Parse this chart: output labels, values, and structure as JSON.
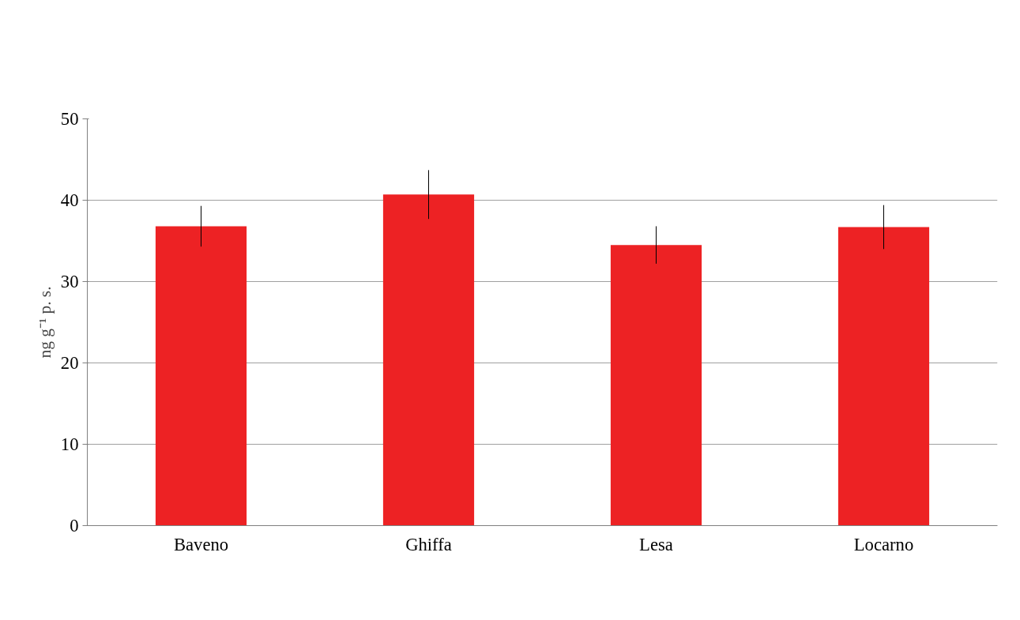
{
  "chart_data": {
    "type": "bar",
    "ylabel": "ng g⁻¹ p. s.",
    "categories": [
      "Baveno",
      "Ghiffa",
      "Lesa",
      "Locarno"
    ],
    "values": [
      36.8,
      40.7,
      34.5,
      36.7
    ],
    "errors": [
      2.5,
      3.0,
      2.3,
      2.7
    ],
    "color": "#ed2224",
    "ylim": [
      0,
      50
    ],
    "yticks": [
      0,
      10,
      20,
      30,
      40,
      50
    ],
    "grid": "y"
  }
}
